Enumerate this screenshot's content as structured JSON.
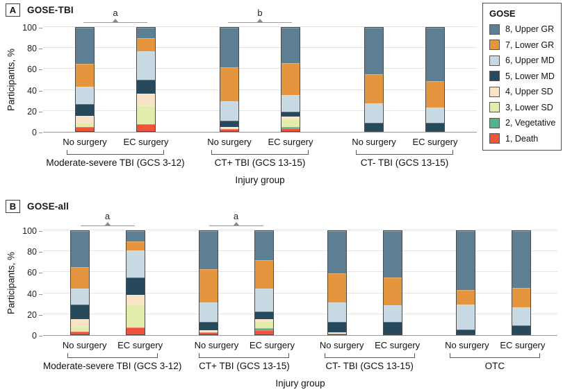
{
  "chart_data": {
    "type": "bar",
    "stacked": true,
    "unit": "%",
    "y_axis_label": "Participants, %",
    "x_axis_label": "Injury group",
    "ylim": [
      0,
      100
    ],
    "y_ticks": [
      0,
      20,
      40,
      60,
      80,
      100
    ],
    "grid": "horizontal",
    "stack_order_bottom_to_top": [
      "1, Death",
      "2, Vegetative",
      "3, Lower SD",
      "4, Upper SD",
      "5, Lower MD",
      "6, Upper MD",
      "7, Lower GR",
      "8, Upper GR"
    ],
    "legend": {
      "title": "GOSE",
      "position": "top-right",
      "items": [
        {
          "label": "8, Upper GR",
          "color": "#5c7f93"
        },
        {
          "label": "7, Lower GR",
          "color": "#e6953f"
        },
        {
          "label": "6, Upper MD",
          "color": "#c9d9e3"
        },
        {
          "label": "5, Lower MD",
          "color": "#26495c"
        },
        {
          "label": "4, Upper SD",
          "color": "#fbe3c8"
        },
        {
          "label": "3, Lower SD",
          "color": "#e3ecab"
        },
        {
          "label": "2, Vegetative",
          "color": "#50b48c"
        },
        {
          "label": "1, Death",
          "color": "#f0523c"
        }
      ]
    },
    "panels": [
      {
        "letter": "A",
        "title": "GOSE-TBI",
        "significance": [
          {
            "group_index": 0,
            "label": "a"
          },
          {
            "group_index": 1,
            "label": "b"
          }
        ],
        "groups": [
          {
            "label": "Moderate-severe TBI (GCS 3-12)",
            "bars": [
              {
                "label": "No surgery",
                "values_bottom_to_top": [
                  4,
                  0,
                  4,
                  7,
                  11,
                  17,
                  22,
                  35
                ]
              },
              {
                "label": "EC surgery",
                "values_bottom_to_top": [
                  7,
                  0,
                  18,
                  11,
                  14,
                  27,
                  13,
                  10
                ]
              }
            ]
          },
          {
            "label": "CT+ TBI (GCS 13-15)",
            "bars": [
              {
                "label": "No surgery",
                "values_bottom_to_top": [
                  2,
                  0,
                  0,
                  2,
                  6,
                  19,
                  33,
                  38
                ]
              },
              {
                "label": "EC surgery",
                "values_bottom_to_top": [
                  3,
                  1,
                  8,
                  2,
                  5,
                  16,
                  31,
                  34
                ]
              }
            ]
          },
          {
            "label": "CT- TBI (GCS 13-15)",
            "bars": [
              {
                "label": "No surgery",
                "values_bottom_to_top": [
                  0,
                  0,
                  0,
                  0,
                  8,
                  19,
                  28,
                  45
                ]
              },
              {
                "label": "EC surgery",
                "values_bottom_to_top": [
                  0,
                  0,
                  0,
                  0,
                  8,
                  15,
                  25,
                  52
                ]
              }
            ]
          }
        ]
      },
      {
        "letter": "B",
        "title": "GOSE-all",
        "significance": [
          {
            "group_index": 0,
            "label": "a"
          },
          {
            "group_index": 1,
            "label": "a"
          }
        ],
        "groups": [
          {
            "label": "Moderate-severe TBI (GCS 3-12)",
            "bars": [
              {
                "label": "No surgery",
                "values_bottom_to_top": [
                  3,
                  0,
                  5,
                  7,
                  14,
                  15,
                  21,
                  35
                ]
              },
              {
                "label": "EC surgery",
                "values_bottom_to_top": [
                  7,
                  0,
                  22,
                  9,
                  17,
                  26,
                  9,
                  10
                ]
              }
            ]
          },
          {
            "label": "CT+ TBI (GCS 13-15)",
            "bars": [
              {
                "label": "No surgery",
                "values_bottom_to_top": [
                  2,
                  0,
                  0,
                  2,
                  8,
                  19,
                  32,
                  37
                ]
              },
              {
                "label": "EC surgery",
                "values_bottom_to_top": [
                  4,
                  2,
                  7,
                  2,
                  7,
                  22,
                  28,
                  28
                ]
              }
            ]
          },
          {
            "label": "CT- TBI (GCS 13-15)",
            "bars": [
              {
                "label": "No surgery",
                "values_bottom_to_top": [
                  1,
                  0,
                  0,
                  1,
                  10,
                  19,
                  28,
                  41
                ]
              },
              {
                "label": "EC surgery",
                "values_bottom_to_top": [
                  0,
                  0,
                  0,
                  0,
                  12,
                  16,
                  27,
                  45
                ]
              }
            ]
          },
          {
            "label": "OTC",
            "bars": [
              {
                "label": "No surgery",
                "values_bottom_to_top": [
                  0,
                  0,
                  0,
                  0,
                  5,
                  24,
                  14,
                  57
                ]
              },
              {
                "label": "EC surgery",
                "values_bottom_to_top": [
                  0,
                  0,
                  0,
                  0,
                  9,
                  17,
                  19,
                  55
                ]
              }
            ]
          }
        ]
      }
    ]
  }
}
